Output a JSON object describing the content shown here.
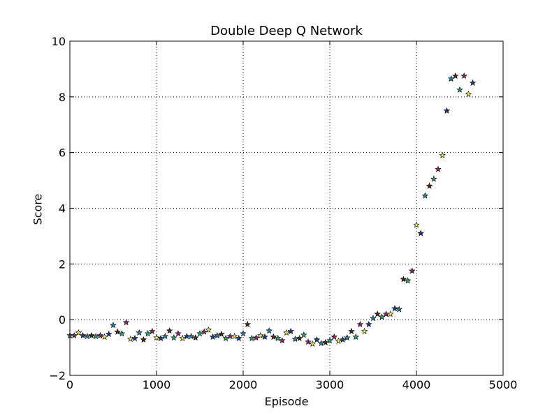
{
  "chart_data": {
    "type": "scatter",
    "title": "Double Deep Q Network",
    "xlabel": "Episode",
    "ylabel": "Score",
    "xlim": [
      0,
      5000
    ],
    "ylim": [
      -2,
      10
    ],
    "xticks": [
      0,
      1000,
      2000,
      3000,
      4000,
      5000
    ],
    "xtick_labels": [
      "0",
      "1000",
      "2000",
      "3000",
      "4000",
      "5000"
    ],
    "yticks": [
      -2,
      0,
      2,
      4,
      6,
      8,
      10
    ],
    "ytick_labels": [
      "−2",
      "0",
      "2",
      "4",
      "6",
      "8",
      "10"
    ],
    "grid": true,
    "marker": "star",
    "marker_colors": [
      "#2f9e6e",
      "#8b2a6a",
      "#e3e35a",
      "#1d3f8a",
      "#2a7f9e",
      "#4f2d1a"
    ],
    "series": [
      {
        "x": [
          0,
          50,
          100,
          150,
          200,
          250,
          300,
          350,
          400,
          450,
          500,
          550,
          600,
          650,
          700,
          750,
          800,
          850,
          900,
          950,
          1000,
          1050,
          1100,
          1150,
          1200,
          1250,
          1300,
          1350,
          1400,
          1450,
          1500,
          1550,
          1600,
          1650,
          1700,
          1750,
          1800,
          1850,
          1900,
          1950,
          2000,
          2050,
          2100,
          2150,
          2200,
          2250,
          2300,
          2350,
          2400,
          2450,
          2500,
          2550,
          2600,
          2650,
          2700,
          2750,
          2800,
          2850,
          2900,
          2950,
          3000,
          3050,
          3100,
          3150,
          3200,
          3250,
          3300,
          3350,
          3400,
          3450,
          3500,
          3550,
          3600,
          3650,
          3700,
          3750,
          3800,
          3850,
          3900,
          3950,
          4000,
          4050,
          4100,
          4150,
          4200,
          4250,
          4300,
          4350,
          4400,
          4450,
          4500,
          4550,
          4600,
          4650
        ],
        "y": [
          -0.57,
          -0.57,
          -0.47,
          -0.57,
          -0.6,
          -0.57,
          -0.6,
          -0.57,
          -0.62,
          -0.52,
          -0.2,
          -0.44,
          -0.5,
          -0.1,
          -0.7,
          -0.67,
          -0.47,
          -0.72,
          -0.5,
          -0.42,
          -0.65,
          -0.67,
          -0.6,
          -0.4,
          -0.65,
          -0.5,
          -0.67,
          -0.6,
          -0.6,
          -0.65,
          -0.5,
          -0.44,
          -0.37,
          -0.62,
          -0.57,
          -0.52,
          -0.67,
          -0.6,
          -0.6,
          -0.67,
          -0.5,
          -0.17,
          -0.67,
          -0.65,
          -0.57,
          -0.62,
          -0.4,
          -0.62,
          -0.67,
          -0.75,
          -0.47,
          -0.42,
          -0.7,
          -0.67,
          -0.55,
          -0.8,
          -0.87,
          -0.72,
          -0.85,
          -0.82,
          -0.75,
          -0.62,
          -0.77,
          -0.72,
          -0.65,
          -0.42,
          -0.62,
          -0.17,
          -0.42,
          -0.17,
          0.05,
          0.2,
          0.1,
          0.2,
          0.2,
          0.4,
          0.37,
          1.45,
          1.4,
          1.75,
          3.4,
          3.1,
          4.45,
          4.8,
          5.05,
          5.4,
          5.9,
          7.5,
          8.65,
          8.75,
          8.25,
          8.75,
          8.1,
          8.5
        ]
      }
    ]
  }
}
